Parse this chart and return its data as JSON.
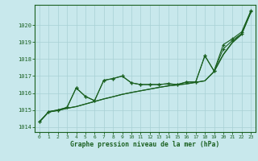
{
  "title": "Graphe pression niveau de la mer (hPa)",
  "bg_color": "#c8e8ec",
  "grid_color": "#a8d0d4",
  "line_color": "#1a6020",
  "xlim_min": -0.5,
  "xlim_max": 23.5,
  "ylim_min": 1013.7,
  "ylim_max": 1021.2,
  "xticks": [
    0,
    1,
    2,
    3,
    4,
    5,
    6,
    7,
    8,
    9,
    10,
    11,
    12,
    13,
    14,
    15,
    16,
    17,
    18,
    19,
    20,
    21,
    22,
    23
  ],
  "yticks": [
    1014,
    1015,
    1016,
    1017,
    1018,
    1019,
    1020
  ],
  "x": [
    0,
    1,
    2,
    3,
    4,
    5,
    6,
    7,
    8,
    9,
    10,
    11,
    12,
    13,
    14,
    15,
    16,
    17,
    18,
    19,
    20,
    21,
    22,
    23
  ],
  "y_line1_marked": [
    1014.3,
    1014.9,
    1015.0,
    1015.15,
    1016.3,
    1015.8,
    1015.55,
    1016.75,
    1016.85,
    1017.0,
    1016.6,
    1016.5,
    1016.5,
    1016.5,
    1016.55,
    1016.5,
    1016.65,
    1016.65,
    1018.2,
    1017.3,
    1018.6,
    1019.1,
    1019.5,
    1020.8
  ],
  "y_line2_marked": [
    1014.3,
    1014.9,
    1015.0,
    1015.15,
    1016.3,
    1015.8,
    1015.55,
    1016.75,
    1016.85,
    1017.0,
    1016.6,
    1016.5,
    1016.5,
    1016.5,
    1016.55,
    1016.5,
    1016.65,
    1016.65,
    1018.2,
    1017.3,
    1018.85,
    1019.2,
    1019.6,
    1020.85
  ],
  "y_line3_smooth": [
    1014.3,
    1014.88,
    1014.97,
    1015.1,
    1015.2,
    1015.35,
    1015.5,
    1015.65,
    1015.78,
    1015.92,
    1016.03,
    1016.13,
    1016.23,
    1016.33,
    1016.42,
    1016.48,
    1016.54,
    1016.63,
    1016.72,
    1017.28,
    1018.28,
    1019.0,
    1019.48,
    1020.78
  ],
  "y_line4_smooth": [
    1014.3,
    1014.88,
    1014.97,
    1015.1,
    1015.2,
    1015.35,
    1015.5,
    1015.65,
    1015.78,
    1015.92,
    1016.03,
    1016.13,
    1016.23,
    1016.33,
    1016.42,
    1016.48,
    1016.54,
    1016.63,
    1016.72,
    1017.25,
    1018.25,
    1018.97,
    1019.45,
    1020.75
  ]
}
